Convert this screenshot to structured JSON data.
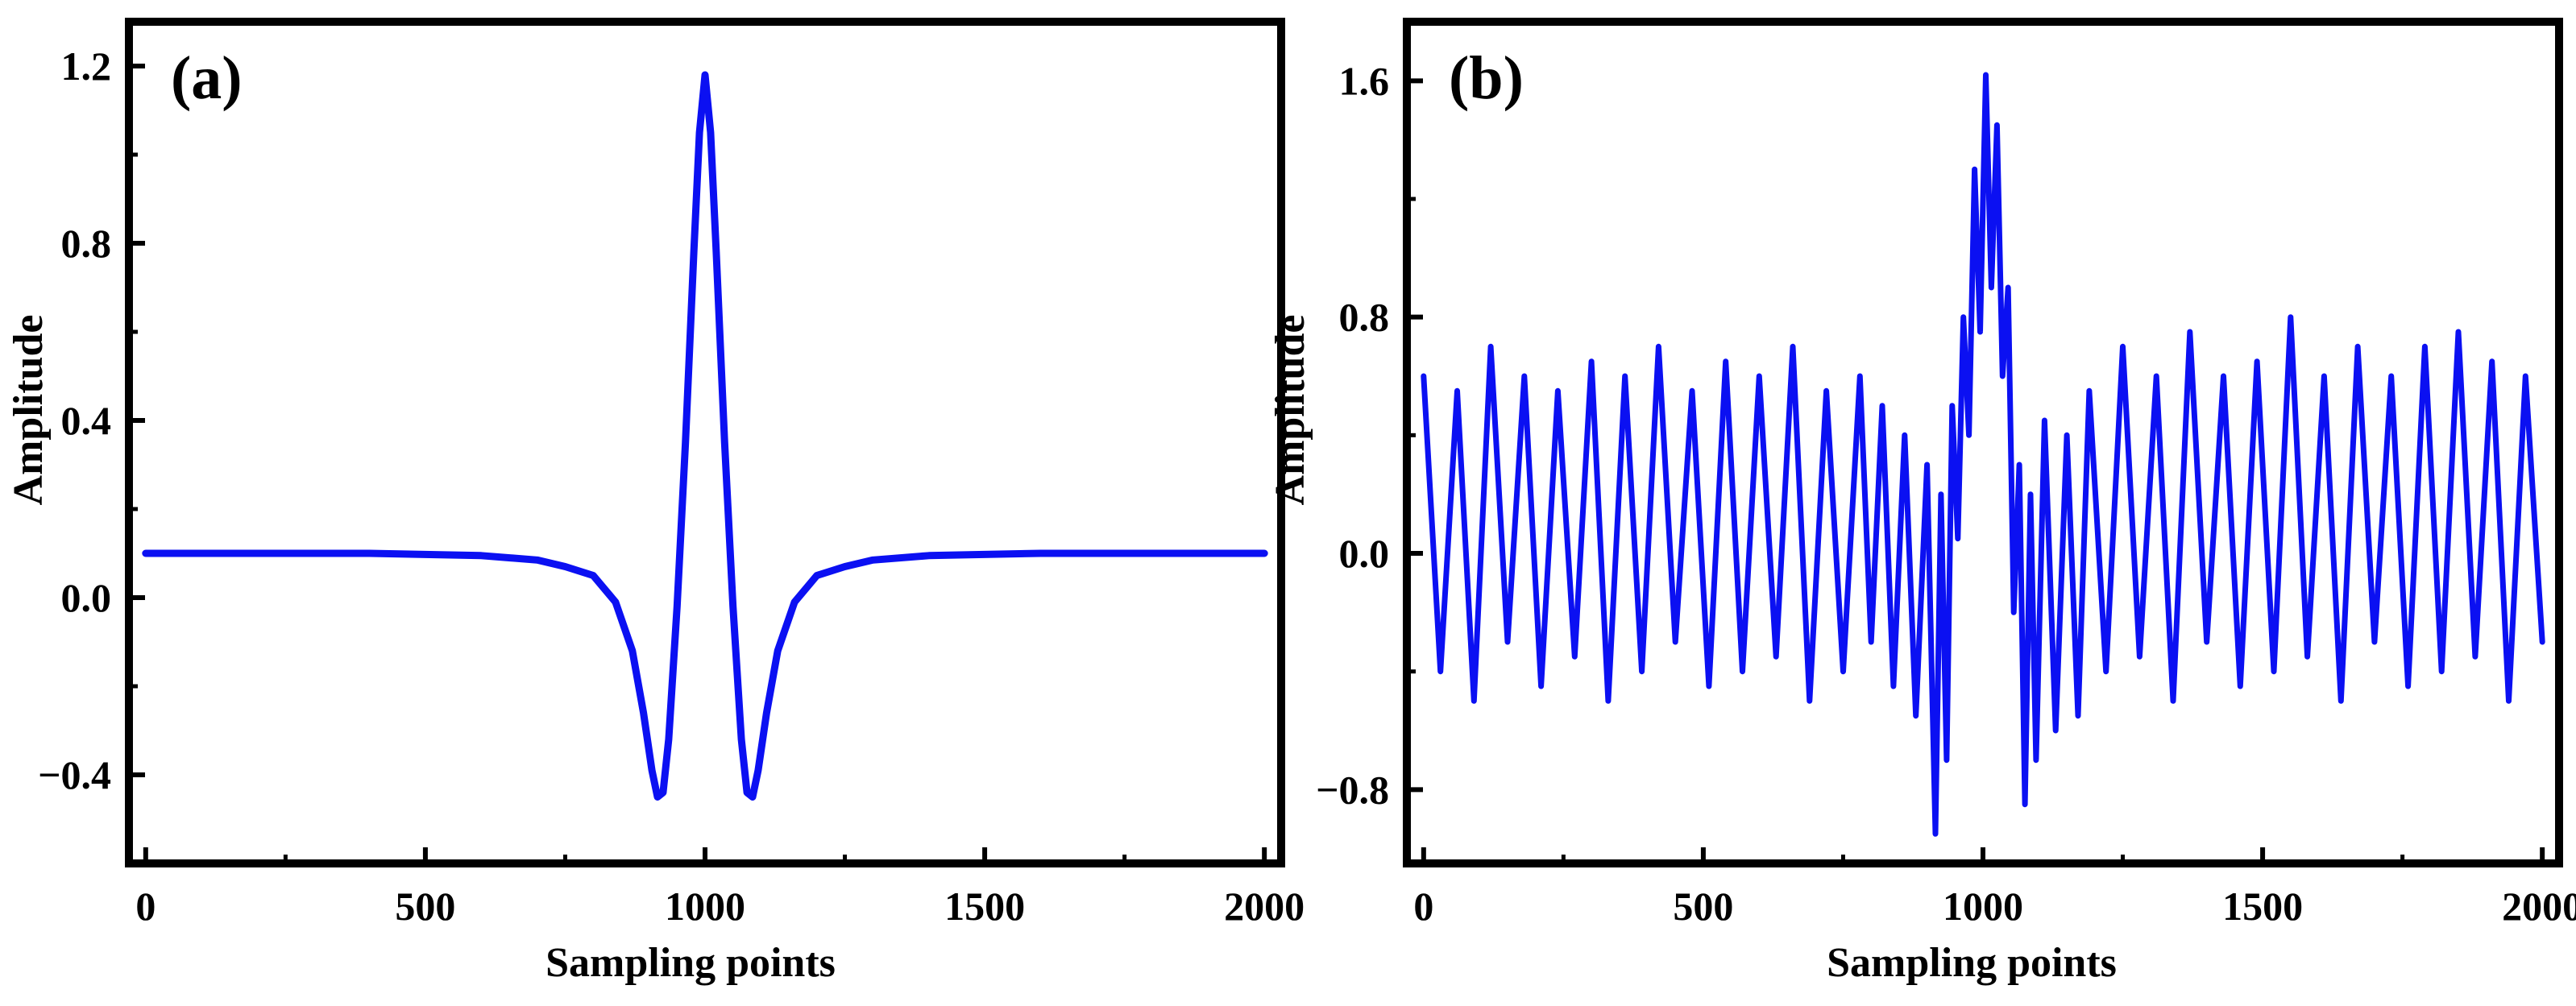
{
  "colors": {
    "line": "#0b10f2",
    "axes": "#000000"
  },
  "chart_data": [
    {
      "type": "line",
      "panel_label": "(a)",
      "xlabel": "Sampling points",
      "ylabel": "Amplitude",
      "xlim": [
        -30,
        2030
      ],
      "ylim": [
        -0.6,
        1.3
      ],
      "xticks": [
        0,
        500,
        1000,
        1500,
        2000
      ],
      "xtick_labels": [
        "0",
        "500",
        "1000",
        "1500",
        "2000"
      ],
      "yticks": [
        -0.4,
        0,
        0.4,
        0.8,
        1.2
      ],
      "ytick_labels": [
        "−0.4",
        "0.0",
        "0.4",
        "0.8",
        "1.2"
      ],
      "grid": false,
      "series": [
        {
          "x": [
            0,
            200,
            400,
            600,
            700,
            750,
            800,
            840,
            870,
            890,
            905,
            915,
            925,
            935,
            950,
            965,
            980,
            990,
            1000,
            1010,
            1020,
            1035,
            1050,
            1065,
            1075,
            1085,
            1095,
            1110,
            1130,
            1160,
            1200,
            1250,
            1300,
            1400,
            1600,
            1800,
            2000
          ],
          "values": [
            0.1,
            0.1,
            0.1,
            0.095,
            0.085,
            0.07,
            0.05,
            -0.01,
            -0.12,
            -0.26,
            -0.39,
            -0.45,
            -0.44,
            -0.32,
            -0.02,
            0.35,
            0.78,
            1.05,
            1.18,
            1.05,
            0.78,
            0.35,
            -0.02,
            -0.32,
            -0.44,
            -0.45,
            -0.39,
            -0.26,
            -0.12,
            -0.01,
            0.05,
            0.07,
            0.085,
            0.095,
            0.1,
            0.1,
            0.1
          ]
        }
      ]
    },
    {
      "type": "line",
      "panel_label": "(b)",
      "xlabel": "Sampling points",
      "ylabel": "Amplitude",
      "xlim": [
        -30,
        2030
      ],
      "ylim": [
        -1.05,
        1.8
      ],
      "xticks": [
        0,
        500,
        1000,
        1500,
        2000
      ],
      "xtick_labels": [
        "0",
        "500",
        "1000",
        "1500",
        "2000"
      ],
      "yticks": [
        -0.8,
        0,
        0.8,
        1.6
      ],
      "ytick_labels": [
        "−0.8",
        "0.0",
        "0.8",
        "1.6"
      ],
      "grid": false,
      "series": [
        {
          "x": [
            0,
            30,
            60,
            90,
            120,
            150,
            180,
            210,
            240,
            270,
            300,
            330,
            360,
            390,
            420,
            450,
            480,
            510,
            540,
            570,
            600,
            630,
            660,
            690,
            720,
            750,
            780,
            800,
            820,
            840,
            860,
            880,
            900,
            915,
            925,
            935,
            945,
            955,
            965,
            975,
            985,
            995,
            1005,
            1015,
            1025,
            1035,
            1045,
            1055,
            1065,
            1075,
            1085,
            1095,
            1110,
            1130,
            1150,
            1170,
            1190,
            1220,
            1250,
            1280,
            1310,
            1340,
            1370,
            1400,
            1430,
            1460,
            1490,
            1520,
            1550,
            1580,
            1610,
            1640,
            1670,
            1700,
            1730,
            1760,
            1790,
            1820,
            1850,
            1880,
            1910,
            1940,
            1970,
            2000
          ],
          "values": [
            0.6,
            -0.4,
            0.55,
            -0.5,
            0.7,
            -0.3,
            0.6,
            -0.45,
            0.55,
            -0.35,
            0.65,
            -0.5,
            0.6,
            -0.4,
            0.7,
            -0.3,
            0.55,
            -0.45,
            0.65,
            -0.4,
            0.6,
            -0.35,
            0.7,
            -0.5,
            0.55,
            -0.4,
            0.6,
            -0.3,
            0.5,
            -0.45,
            0.4,
            -0.55,
            0.3,
            -0.95,
            0.2,
            -0.7,
            0.5,
            0.05,
            0.8,
            0.4,
            1.3,
            0.75,
            1.62,
            0.9,
            1.45,
            0.6,
            0.9,
            -0.2,
            0.3,
            -0.85,
            0.2,
            -0.7,
            0.45,
            -0.6,
            0.4,
            -0.55,
            0.55,
            -0.4,
            0.7,
            -0.35,
            0.6,
            -0.5,
            0.75,
            -0.3,
            0.6,
            -0.45,
            0.65,
            -0.4,
            0.8,
            -0.35,
            0.6,
            -0.5,
            0.7,
            -0.3,
            0.6,
            -0.45,
            0.7,
            -0.4,
            0.75,
            -0.35,
            0.65,
            -0.5,
            0.6,
            -0.3
          ]
        }
      ]
    }
  ]
}
